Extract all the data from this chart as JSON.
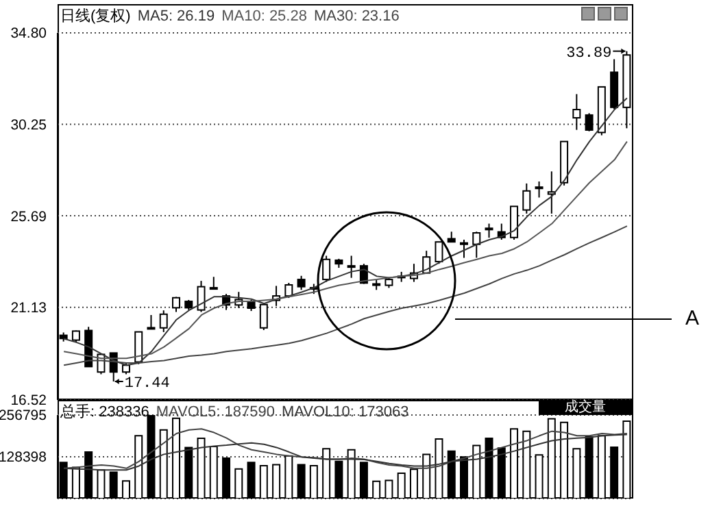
{
  "chart_data": [
    {
      "type": "candlestick",
      "title": "日线(复权)",
      "categories": [
        null,
        null,
        null,
        null,
        null,
        null,
        null,
        null,
        null,
        null,
        null,
        null,
        null,
        null,
        null,
        null,
        null,
        null,
        null,
        null,
        null,
        null,
        null,
        null,
        null,
        null,
        null,
        null,
        null,
        null,
        null,
        null,
        null,
        null,
        null,
        null,
        null,
        null,
        null,
        null,
        null,
        null,
        null,
        null,
        null,
        null
      ],
      "ohlc": [
        [
          19.74,
          19.88,
          19.43,
          19.58
        ],
        [
          19.5,
          19.98,
          19.4,
          19.95
        ],
        [
          19.98,
          20.16,
          18.18,
          18.18
        ],
        [
          17.91,
          18.79,
          17.8,
          18.79
        ],
        [
          18.86,
          18.86,
          17.44,
          17.91
        ],
        [
          17.91,
          18.35,
          17.8,
          18.25
        ],
        [
          18.41,
          19.91,
          18.3,
          19.91
        ],
        [
          20.12,
          20.75,
          20.05,
          20.1
        ],
        [
          20.11,
          20.98,
          19.9,
          20.79
        ],
        [
          21.11,
          21.65,
          20.9,
          21.61
        ],
        [
          21.43,
          21.5,
          21.0,
          21.11
        ],
        [
          21.0,
          22.45,
          20.9,
          22.16
        ],
        [
          22.11,
          22.65,
          22.05,
          22.11
        ],
        [
          21.7,
          21.8,
          21.0,
          21.25
        ],
        [
          21.25,
          21.9,
          21.1,
          21.52
        ],
        [
          21.43,
          21.5,
          20.95,
          21.09
        ],
        [
          20.11,
          21.3,
          20.0,
          21.27
        ],
        [
          21.48,
          22.2,
          21.2,
          21.7
        ],
        [
          21.7,
          22.35,
          21.6,
          22.25
        ],
        [
          22.52,
          22.7,
          22.0,
          22.16
        ],
        [
          22.11,
          22.3,
          21.8,
          22.11
        ],
        [
          22.52,
          23.7,
          22.4,
          23.52
        ],
        [
          23.48,
          23.55,
          23.1,
          23.3
        ],
        [
          23.2,
          23.7,
          22.6,
          23.2
        ],
        [
          23.2,
          23.3,
          22.3,
          22.34
        ],
        [
          22.3,
          22.5,
          22.0,
          22.3
        ],
        [
          22.23,
          22.6,
          22.1,
          22.52
        ],
        [
          22.68,
          22.9,
          22.4,
          22.68
        ],
        [
          22.57,
          23.3,
          22.4,
          22.84
        ],
        [
          22.84,
          23.95,
          22.8,
          23.64
        ],
        [
          23.41,
          24.39,
          23.3,
          24.39
        ],
        [
          24.55,
          24.9,
          24.39,
          24.39
        ],
        [
          24.34,
          24.5,
          23.6,
          24.34
        ],
        [
          24.27,
          24.9,
          23.6,
          24.84
        ],
        [
          25.07,
          25.3,
          24.6,
          25.07
        ],
        [
          24.89,
          25.3,
          24.5,
          24.61
        ],
        [
          24.61,
          26.16,
          24.5,
          26.16
        ],
        [
          25.98,
          27.3,
          25.8,
          26.93
        ],
        [
          27.12,
          27.4,
          26.6,
          27.12
        ],
        [
          26.77,
          27.9,
          25.8,
          26.88
        ],
        [
          27.34,
          29.39,
          27.2,
          29.39
        ],
        [
          30.57,
          31.75,
          29.97,
          30.98
        ],
        [
          30.71,
          30.8,
          29.9,
          29.96
        ],
        [
          29.84,
          32.11,
          29.7,
          32.11
        ],
        [
          32.84,
          33.49,
          31.0,
          31.09
        ],
        [
          31.09,
          33.89,
          30.05,
          33.7
        ]
      ],
      "series": [
        {
          "type": "line",
          "name": "MA5: 26.19",
          "color": "#333333",
          "values": [
            19.57,
            19.39,
            19.16,
            18.82,
            18.48,
            18.25,
            18.36,
            18.93,
            19.73,
            20.52,
            20.98,
            21.32,
            21.66,
            21.66,
            21.61,
            21.54,
            21.32,
            21.54,
            21.7,
            21.89,
            22.11,
            22.45,
            22.68,
            22.91,
            23.02,
            22.68,
            22.61,
            22.68,
            22.8,
            23.02,
            23.36,
            23.7,
            23.98,
            24.27,
            24.5,
            24.66,
            24.96,
            25.64,
            26.21,
            26.66,
            27.46,
            28.48,
            29.39,
            30.18,
            30.98,
            31.55
          ]
        },
        {
          "type": "line",
          "name": "MA10: 25.28",
          "color": "#555555",
          "values": [
            18.93,
            18.82,
            18.7,
            18.59,
            18.59,
            18.59,
            18.7,
            18.82,
            19.16,
            19.61,
            20.07,
            20.75,
            21.09,
            21.32,
            21.43,
            21.43,
            21.48,
            21.54,
            21.66,
            21.77,
            21.89,
            22.07,
            22.23,
            22.34,
            22.45,
            22.52,
            22.61,
            22.68,
            22.73,
            22.84,
            23.02,
            23.18,
            23.36,
            23.52,
            23.7,
            23.82,
            24.05,
            24.39,
            24.84,
            25.3,
            25.98,
            26.66,
            27.34,
            27.91,
            28.48,
            29.39
          ]
        },
        {
          "type": "line",
          "name": "MA30: 23.16",
          "color": "#444444",
          "values": [
            18.25,
            18.36,
            18.48,
            18.48,
            18.43,
            18.36,
            18.36,
            18.43,
            18.48,
            18.59,
            18.7,
            18.75,
            18.82,
            18.93,
            19.0,
            19.07,
            19.16,
            19.25,
            19.34,
            19.48,
            19.66,
            19.84,
            20.07,
            20.3,
            20.57,
            20.75,
            20.93,
            21.09,
            21.2,
            21.32,
            21.48,
            21.66,
            21.84,
            22.07,
            22.3,
            22.57,
            22.8,
            22.98,
            23.2,
            23.48,
            23.75,
            24.05,
            24.34,
            24.61,
            24.89,
            25.18
          ]
        }
      ],
      "ylim": [
        16.52,
        34.8
      ],
      "yticks": [
        {
          "value": 16.52,
          "label": "16.52"
        },
        {
          "value": 21.13,
          "label": "21.13"
        },
        {
          "value": 25.69,
          "label": "25.69"
        },
        {
          "value": 30.25,
          "label": "30.25"
        },
        {
          "value": 34.8,
          "label": "34.80"
        }
      ],
      "grid": "y",
      "tick_labels": "y",
      "annotations": [
        "17.44",
        "33.89",
        "A"
      ]
    },
    {
      "type": "bar",
      "title": "总手: 238336",
      "categories": [
        null,
        null,
        null,
        null,
        null,
        null,
        null,
        null,
        null,
        null,
        null,
        null,
        null,
        null,
        null,
        null,
        null,
        null,
        null,
        null,
        null,
        null,
        null,
        null,
        null,
        null,
        null,
        null,
        null,
        null,
        null,
        null,
        null,
        null,
        null,
        null,
        null,
        null,
        null,
        null,
        null,
        null,
        null,
        null,
        null,
        null
      ],
      "series": [
        {
          "type": "bar",
          "values": [
            111000,
            96000,
            143000,
            88000,
            81000,
            54000,
            193000,
            256000,
            211000,
            247000,
            157000,
            185000,
            160000,
            124000,
            91000,
            111000,
            101000,
            104000,
            131000,
            104000,
            101000,
            153000,
            114000,
            150000,
            111000,
            53000,
            56000,
            78000,
            90000,
            136000,
            183000,
            146000,
            128000,
            163000,
            185000,
            155000,
            214000,
            207000,
            134000,
            245000,
            234000,
            153000,
            190000,
            193000,
            158000,
            238000
          ],
          "colors": [
            "#000000",
            "#ffffff",
            "#000000",
            "#ffffff",
            "#000000",
            "#ffffff",
            "#ffffff",
            "#000000",
            "#ffffff",
            "#ffffff",
            "#000000",
            "#ffffff",
            "#ffffff",
            "#000000",
            "#ffffff",
            "#000000",
            "#ffffff",
            "#ffffff",
            "#ffffff",
            "#000000",
            "#ffffff",
            "#ffffff",
            "#000000",
            "#ffffff",
            "#000000",
            "#ffffff",
            "#ffffff",
            "#ffffff",
            "#ffffff",
            "#ffffff",
            "#ffffff",
            "#000000",
            "#000000",
            "#ffffff",
            "#000000",
            "#000000",
            "#ffffff",
            "#ffffff",
            "#ffffff",
            "#ffffff",
            "#ffffff",
            "#ffffff",
            "#000000",
            "#ffffff",
            "#000000",
            "#ffffff"
          ]
        },
        {
          "type": "line",
          "name": "MAVOL5: 187590",
          "color": "#444444",
          "values": [
            93000,
            96000,
            100000,
            103000,
            100000,
            93000,
            114000,
            143000,
            171000,
            200000,
            211000,
            214000,
            203000,
            186000,
            164000,
            150000,
            143000,
            136000,
            131000,
            128000,
            126000,
            121000,
            121000,
            124000,
            121000,
            111000,
            103000,
            100000,
            93000,
            93000,
            100000,
            114000,
            124000,
            136000,
            146000,
            157000,
            168000,
            178000,
            193000,
            207000,
            203000,
            193000,
            193000,
            200000,
            197000,
            200000
          ]
        },
        {
          "type": "line",
          "name": "MAVOL10: 173063",
          "color": "#333333",
          "values": [
            93000,
            91000,
            90000,
            88000,
            88000,
            88000,
            100000,
            121000,
            136000,
            143000,
            150000,
            157000,
            161000,
            164000,
            168000,
            171000,
            167000,
            157000,
            143000,
            128000,
            124000,
            121000,
            121000,
            121000,
            120000,
            114000,
            108000,
            103000,
            100000,
            100000,
            106000,
            114000,
            118000,
            121000,
            128000,
            136000,
            146000,
            157000,
            168000,
            178000,
            183000,
            186000,
            188000,
            193000,
            195000,
            197000
          ]
        }
      ],
      "ylim": [
        0,
        256795
      ],
      "yticks": [
        128398,
        256795
      ],
      "grid": "y",
      "tick_labels": "y",
      "annotations": [
        "成交量"
      ]
    }
  ]
}
